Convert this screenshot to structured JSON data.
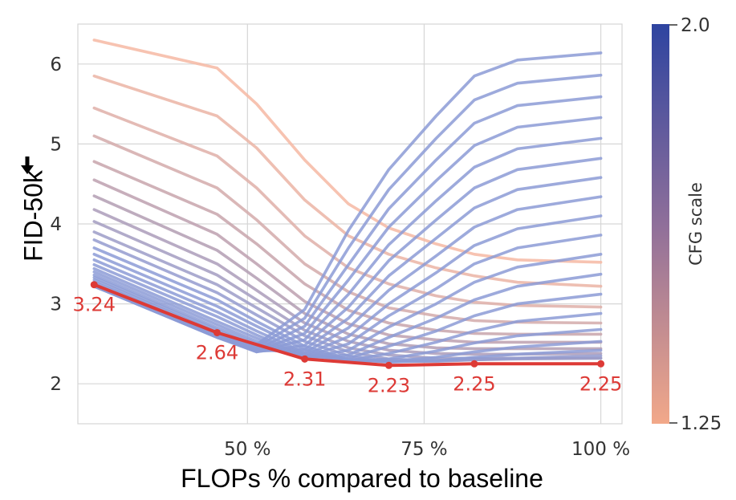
{
  "chart_data": {
    "type": "line",
    "title": "",
    "xlabel": "FLOPs % compared to baseline",
    "ylabel": "FID-50k",
    "ylabel_arrow": "down",
    "xlim": [
      26,
      103
    ],
    "ylim": [
      1.5,
      6.5
    ],
    "xticks": [
      50,
      75,
      100
    ],
    "xtick_labels": [
      "50 %",
      "75 %",
      "100 %"
    ],
    "yticks": [
      2,
      3,
      4,
      5,
      6
    ],
    "ytick_labels": [
      "2",
      "3",
      "4",
      "5",
      "6"
    ],
    "grid": true,
    "colorbar": {
      "title": "CFG scale",
      "min": 1.25,
      "max": 2.0,
      "min_label": "1.25",
      "max_label": "2.0",
      "color_min": "#f2a889",
      "color_max": "#2e44a0"
    },
    "x": [
      28.3,
      45.7,
      51.3,
      58.1,
      64.3,
      70.0,
      76.7,
      82.1,
      88.2,
      100.0
    ],
    "series": [
      {
        "cfg": 1.25,
        "values": [
          6.3,
          5.95,
          5.5,
          4.8,
          4.25,
          3.95,
          3.75,
          3.62,
          3.55,
          3.52
        ]
      },
      {
        "cfg": 1.3,
        "values": [
          5.85,
          5.35,
          4.95,
          4.3,
          3.85,
          3.62,
          3.45,
          3.35,
          3.27,
          3.22
        ]
      },
      {
        "cfg": 1.35,
        "values": [
          5.45,
          4.85,
          4.45,
          3.85,
          3.45,
          3.25,
          3.1,
          3.02,
          2.98,
          2.96
        ]
      },
      {
        "cfg": 1.4,
        "values": [
          5.1,
          4.45,
          4.05,
          3.5,
          3.15,
          2.95,
          2.85,
          2.79,
          2.77,
          2.76
        ]
      },
      {
        "cfg": 1.45,
        "values": [
          4.78,
          4.12,
          3.75,
          3.25,
          2.92,
          2.76,
          2.67,
          2.63,
          2.62,
          2.62
        ]
      },
      {
        "cfg": 1.5,
        "values": [
          4.55,
          3.87,
          3.5,
          3.03,
          2.75,
          2.61,
          2.55,
          2.52,
          2.52,
          2.52
        ]
      },
      {
        "cfg": 1.55,
        "values": [
          4.35,
          3.67,
          3.32,
          2.88,
          2.62,
          2.5,
          2.45,
          2.44,
          2.44,
          2.44
        ]
      },
      {
        "cfg": 1.6,
        "values": [
          4.18,
          3.5,
          3.17,
          2.76,
          2.53,
          2.42,
          2.38,
          2.37,
          2.37,
          2.38
        ]
      },
      {
        "cfg": 1.65,
        "values": [
          4.03,
          3.36,
          3.05,
          2.67,
          2.45,
          2.36,
          2.32,
          2.32,
          2.32,
          2.32
        ]
      },
      {
        "cfg": 1.7,
        "values": [
          3.9,
          3.24,
          2.95,
          2.6,
          2.4,
          2.31,
          2.29,
          2.3,
          2.31,
          2.32
        ]
      },
      {
        "cfg": 1.75,
        "values": [
          3.8,
          3.14,
          2.86,
          2.53,
          2.35,
          2.28,
          2.28,
          2.3,
          2.32,
          2.35
        ]
      },
      {
        "cfg": 1.8,
        "values": [
          3.7,
          3.05,
          2.78,
          2.47,
          2.31,
          2.27,
          2.29,
          2.33,
          2.37,
          2.42
        ]
      },
      {
        "cfg": 1.85,
        "values": [
          3.62,
          2.97,
          2.72,
          2.43,
          2.29,
          2.28,
          2.33,
          2.4,
          2.46,
          2.53
        ]
      },
      {
        "cfg": 1.9,
        "values": [
          3.55,
          2.9,
          2.66,
          2.39,
          2.28,
          2.31,
          2.41,
          2.51,
          2.6,
          2.68
        ]
      },
      {
        "cfg": 1.95,
        "values": [
          3.49,
          2.84,
          2.61,
          2.36,
          2.29,
          2.38,
          2.52,
          2.66,
          2.78,
          2.88
        ]
      },
      {
        "cfg": 2.0,
        "values": [
          3.44,
          2.78,
          2.57,
          2.34,
          2.32,
          2.47,
          2.66,
          2.85,
          3.0,
          3.12
        ]
      },
      {
        "cfg": 2.05,
        "values": [
          3.4,
          2.74,
          2.53,
          2.33,
          2.36,
          2.58,
          2.82,
          3.05,
          3.22,
          3.37
        ]
      },
      {
        "cfg": 2.1,
        "values": [
          3.36,
          2.7,
          2.5,
          2.33,
          2.42,
          2.71,
          3.0,
          3.27,
          3.46,
          3.62
        ]
      },
      {
        "cfg": 2.15,
        "values": [
          3.33,
          2.67,
          2.47,
          2.34,
          2.5,
          2.85,
          3.19,
          3.5,
          3.7,
          3.86
        ]
      },
      {
        "cfg": 2.2,
        "values": [
          3.3,
          2.64,
          2.45,
          2.36,
          2.59,
          3.0,
          3.39,
          3.73,
          3.94,
          4.1
        ]
      },
      {
        "cfg": 2.25,
        "values": [
          3.27,
          2.62,
          2.43,
          2.39,
          2.7,
          3.17,
          3.6,
          3.96,
          4.18,
          4.34
        ]
      },
      {
        "cfg": 2.3,
        "values": [
          3.25,
          2.6,
          2.41,
          2.43,
          2.82,
          3.35,
          3.82,
          4.2,
          4.43,
          4.58
        ]
      },
      {
        "cfg": 2.35,
        "values": [
          3.24,
          2.59,
          2.4,
          2.48,
          2.96,
          3.54,
          4.05,
          4.45,
          4.68,
          4.82
        ]
      },
      {
        "cfg": 2.4,
        "values": [
          3.23,
          2.58,
          2.4,
          2.55,
          3.12,
          3.74,
          4.29,
          4.71,
          4.94,
          5.07
        ]
      },
      {
        "cfg": 2.45,
        "values": [
          3.22,
          2.58,
          2.41,
          2.63,
          3.3,
          3.96,
          4.54,
          4.98,
          5.21,
          5.33
        ]
      },
      {
        "cfg": 2.5,
        "values": [
          3.22,
          2.58,
          2.43,
          2.72,
          3.49,
          4.19,
          4.8,
          5.26,
          5.48,
          5.59
        ]
      },
      {
        "cfg": 2.55,
        "values": [
          3.22,
          2.59,
          2.46,
          2.82,
          3.7,
          4.43,
          5.07,
          5.55,
          5.76,
          5.86
        ]
      },
      {
        "cfg": 2.6,
        "values": [
          3.22,
          2.6,
          2.49,
          2.93,
          3.92,
          4.68,
          5.35,
          5.85,
          6.05,
          6.14
        ]
      }
    ],
    "pareto_front": {
      "color": "#dd3a36",
      "x": [
        28.3,
        45.7,
        58.1,
        70.0,
        82.1,
        100.0
      ],
      "y": [
        3.24,
        2.64,
        2.31,
        2.23,
        2.25,
        2.25
      ],
      "labels": [
        "3.24",
        "2.64",
        "2.31",
        "2.23",
        "2.25",
        "2.25"
      ]
    }
  }
}
